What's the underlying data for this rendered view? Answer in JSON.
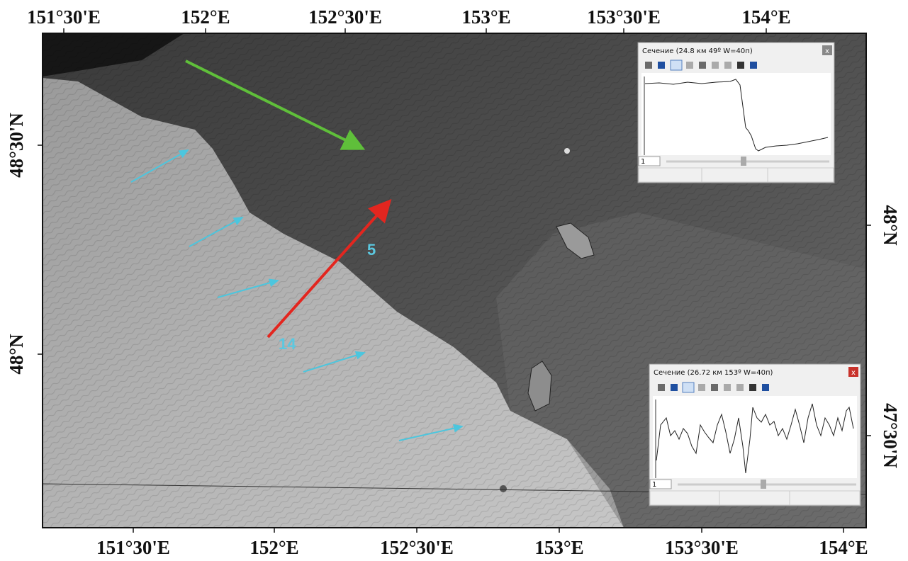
{
  "map": {
    "top_labels": [
      "151°30'E",
      "152°E",
      "152°30'E",
      "153°E",
      "153°30'E",
      "154°E"
    ],
    "bottom_labels": [
      "151°30'E",
      "152°E",
      "152°30'E",
      "153°E",
      "153°30'E",
      "154°E"
    ],
    "left_labels": [
      "48°30'N",
      "48°N"
    ],
    "right_labels": [
      "48°N",
      "47°30'N"
    ],
    "annotations": [
      "5",
      "14"
    ]
  },
  "windows": [
    {
      "title": "Сечение (24.8 км 49º W=40п)",
      "close": "x",
      "spinner": "1"
    },
    {
      "title": "Сечение (26.72 км 153º W=40п)",
      "close": "x",
      "spinner": "1"
    }
  ]
}
